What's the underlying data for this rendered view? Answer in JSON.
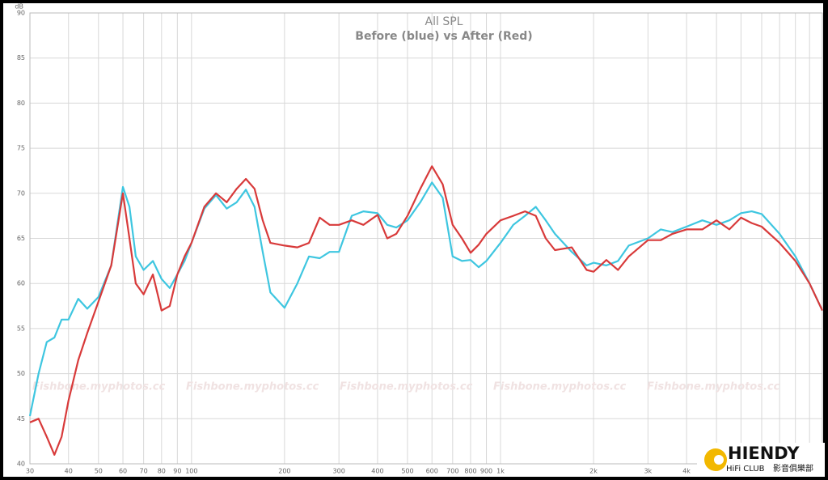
{
  "chart_data": {
    "type": "line",
    "title": "All SPL",
    "subtitle": "Before (blue) vs After (Red)",
    "y_unit": "dB",
    "xscale": "log",
    "grid": true,
    "xlim": [
      30,
      11000
    ],
    "ylim": [
      40,
      90
    ],
    "xticks": [
      30,
      40,
      50,
      60,
      70,
      80,
      90,
      100,
      200,
      300,
      400,
      500,
      600,
      700,
      800,
      900,
      {
        "value": 1000,
        "label": "1k"
      },
      {
        "value": 2000,
        "label": "2k"
      },
      {
        "value": 3000,
        "label": "3k"
      },
      {
        "value": 4000,
        "label": "4k"
      }
    ],
    "xticks_minor": [
      5000,
      6000,
      7000,
      8000,
      9000,
      10000
    ],
    "yticks": [
      40,
      45,
      50,
      55,
      60,
      65,
      70,
      75,
      80,
      85,
      90
    ],
    "x": [
      30,
      32,
      34,
      36,
      38,
      40,
      43,
      46,
      50,
      55,
      60,
      63,
      66,
      70,
      75,
      80,
      85,
      90,
      95,
      100,
      110,
      120,
      130,
      140,
      150,
      160,
      170,
      180,
      200,
      220,
      240,
      260,
      280,
      300,
      330,
      360,
      400,
      430,
      460,
      500,
      550,
      600,
      650,
      700,
      750,
      800,
      850,
      900,
      1000,
      1100,
      1200,
      1300,
      1400,
      1500,
      1700,
      1900,
      2000,
      2200,
      2400,
      2600,
      3000,
      3300,
      3600,
      4000,
      4500,
      5000,
      5500,
      6000,
      6500,
      7000,
      8000,
      9000,
      10000,
      11000
    ],
    "series": [
      {
        "name": "Before",
        "color": "#3ec6e0",
        "values": [
          45.3,
          50,
          53.5,
          54,
          56,
          56,
          58.3,
          57.2,
          58.5,
          62,
          70.7,
          68.5,
          63,
          61.5,
          62.5,
          60.5,
          59.5,
          61,
          62.5,
          64.5,
          68.3,
          69.8,
          68.3,
          69,
          70.4,
          68.5,
          63.5,
          59,
          57.3,
          60,
          63,
          62.8,
          63.5,
          63.5,
          67.5,
          68,
          67.8,
          66.5,
          66.2,
          67,
          69,
          71.2,
          69.5,
          63,
          62.5,
          62.6,
          61.8,
          62.5,
          64.5,
          66.5,
          67.5,
          68.5,
          67,
          65.5,
          63.5,
          62,
          62.3,
          62,
          62.5,
          64.2,
          65,
          66,
          65.7,
          66.3,
          67,
          66.5,
          67,
          67.8,
          68,
          67.7,
          65.5,
          63,
          60,
          57
        ]
      },
      {
        "name": "After",
        "color": "#d83a3a",
        "values": [
          44.6,
          45,
          43,
          41,
          43,
          47,
          51.5,
          54.5,
          58,
          62,
          70,
          65,
          60,
          58.8,
          61,
          57,
          57.5,
          61,
          63,
          64.5,
          68.5,
          70,
          69,
          70.5,
          71.6,
          70.5,
          67,
          64.5,
          64.2,
          64,
          64.5,
          67.3,
          66.5,
          66.5,
          67,
          66.5,
          67.6,
          65,
          65.5,
          67.5,
          70.5,
          73,
          71,
          66.5,
          65,
          63.4,
          64.3,
          65.5,
          67,
          67.5,
          68,
          67.5,
          65,
          63.7,
          64,
          61.5,
          61.3,
          62.6,
          61.5,
          63,
          64.8,
          64.8,
          65.5,
          66,
          66,
          67,
          66,
          67.3,
          66.7,
          66.3,
          64.5,
          62.5,
          60,
          57
        ]
      }
    ],
    "watermark": "Fishbone.myphotos.cc",
    "logo": {
      "name": "HIENDY",
      "line1": "HiFi CLUB",
      "line2": "影音俱樂部"
    }
  }
}
